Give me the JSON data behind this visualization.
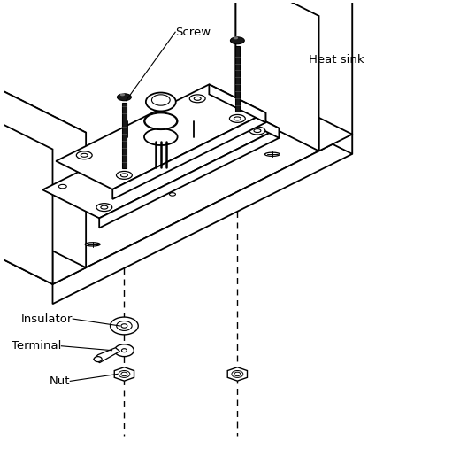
{
  "background_color": "#ffffff",
  "line_color": "#000000",
  "fill_color": "#ffffff",
  "labels": {
    "screw": "Screw",
    "insulator": "Insulator",
    "terminal": "Terminal",
    "nut": "Nut",
    "heat_sink": "Heat sink"
  }
}
